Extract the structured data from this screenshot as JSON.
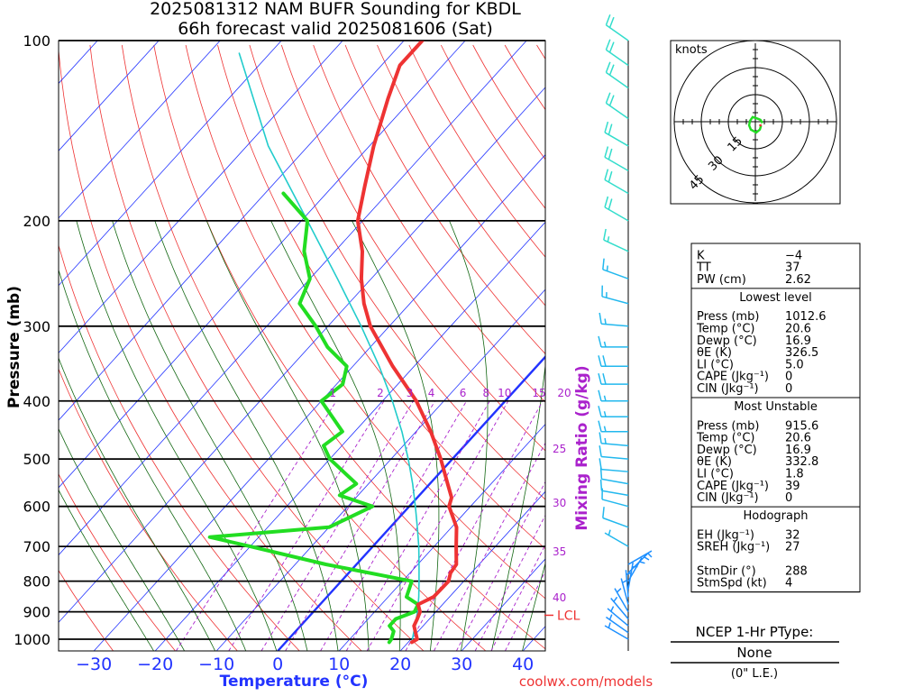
{
  "header": {
    "title_line1": "2025081312 NAM BUFR Sounding for KBDL",
    "title_line2": "66h forecast valid 2025081606 (Sat)"
  },
  "chart_data": {
    "type": "skew-t",
    "ylabel": "Pressure (mb)",
    "xlabel": "Temperature (°C)",
    "mixing_ratio_label": "Mixing Ratio (g/kg)",
    "pressure_ticks": [
      100,
      200,
      300,
      400,
      500,
      600,
      700,
      800,
      900,
      1000
    ],
    "temperature_ticks": [
      -30,
      -20,
      -10,
      0,
      10,
      20,
      30,
      40
    ],
    "mixing_ratio_ticks_top": [
      "1",
      "2",
      "3",
      "4",
      "6",
      "8",
      "10",
      "15",
      "20"
    ],
    "mixing_ratio_ticks_side": [
      "25",
      "30",
      "35",
      "40"
    ],
    "lcl_label": "LCL",
    "lcl_pressure_mb": 912,
    "series": [
      {
        "name": "Temperature",
        "color": "#ee3333",
        "points": [
          [
            1012,
            20.6
          ],
          [
            1000,
            21.0
          ],
          [
            950,
            18.5
          ],
          [
            925,
            18.0
          ],
          [
            900,
            17.4
          ],
          [
            875,
            16.0
          ],
          [
            850,
            17.4
          ],
          [
            800,
            17.5
          ],
          [
            775,
            16.6
          ],
          [
            750,
            16.3
          ],
          [
            700,
            13.6
          ],
          [
            650,
            10.8
          ],
          [
            600,
            6.5
          ],
          [
            580,
            5.6
          ],
          [
            550,
            2.9
          ],
          [
            500,
            -1.9
          ],
          [
            450,
            -7.6
          ],
          [
            400,
            -14.5
          ],
          [
            350,
            -23.5
          ],
          [
            300,
            -33.1
          ],
          [
            275,
            -37.5
          ],
          [
            250,
            -41.6
          ],
          [
            225,
            -45.5
          ],
          [
            200,
            -50.8
          ],
          [
            175,
            -54.8
          ],
          [
            150,
            -59.3
          ],
          [
            125,
            -64.0
          ],
          [
            110,
            -67.0
          ],
          [
            100,
            -67.0
          ]
        ]
      },
      {
        "name": "Dewpoint",
        "color": "#22dd22",
        "points": [
          [
            1012,
            16.9
          ],
          [
            1000,
            16.8
          ],
          [
            970,
            16.0
          ],
          [
            950,
            14.5
          ],
          [
            925,
            14.5
          ],
          [
            900,
            16.5
          ],
          [
            875,
            16.0
          ],
          [
            850,
            13.0
          ],
          [
            800,
            11.5
          ],
          [
            750,
            -5.0
          ],
          [
            700,
            -20.0
          ],
          [
            675,
            -28.0
          ],
          [
            650,
            -10.0
          ],
          [
            600,
            -6.0
          ],
          [
            575,
            -13.0
          ],
          [
            550,
            -12.0
          ],
          [
            500,
            -20.0
          ],
          [
            475,
            -23.0
          ],
          [
            450,
            -22.0
          ],
          [
            400,
            -30.0
          ],
          [
            375,
            -29.0
          ],
          [
            350,
            -31.0
          ],
          [
            325,
            -37.0
          ],
          [
            300,
            -42.0
          ],
          [
            275,
            -48.0
          ],
          [
            250,
            -50.0
          ],
          [
            225,
            -55.0
          ],
          [
            200,
            -59.0
          ],
          [
            180,
            -67.0
          ]
        ]
      },
      {
        "name": "Parcel",
        "color": "#22cccc",
        "points": [
          [
            1012,
            20.6
          ],
          [
            912,
            17.4
          ],
          [
            900,
            17.0
          ],
          [
            850,
            15.0
          ],
          [
            800,
            12.7
          ],
          [
            750,
            10.2
          ],
          [
            700,
            7.5
          ],
          [
            650,
            4.4
          ],
          [
            600,
            1.0
          ],
          [
            550,
            -2.8
          ],
          [
            500,
            -7.2
          ],
          [
            450,
            -12.3
          ],
          [
            400,
            -18.4
          ],
          [
            350,
            -25.7
          ],
          [
            300,
            -34.6
          ],
          [
            250,
            -45.5
          ],
          [
            200,
            -59.0
          ],
          [
            150,
            -76.5
          ],
          [
            105,
            -95.0
          ]
        ]
      }
    ],
    "wind_barbs": [
      {
        "p": 1000,
        "dir": 300,
        "spd": 3
      },
      {
        "p": 975,
        "dir": 305,
        "spd": 4
      },
      {
        "p": 950,
        "dir": 310,
        "spd": 4
      },
      {
        "p": 925,
        "dir": 320,
        "spd": 5
      },
      {
        "p": 900,
        "dir": 330,
        "spd": 5
      },
      {
        "p": 875,
        "dir": 345,
        "spd": 6
      },
      {
        "p": 850,
        "dir": 355,
        "spd": 6
      },
      {
        "p": 825,
        "dir": 10,
        "spd": 5
      },
      {
        "p": 800,
        "dir": 30,
        "spd": 5
      },
      {
        "p": 775,
        "dir": 45,
        "spd": 5
      },
      {
        "p": 750,
        "dir": 60,
        "spd": 4
      },
      {
        "p": 700,
        "dir": 300,
        "spd": 6
      },
      {
        "p": 650,
        "dir": 290,
        "spd": 8
      },
      {
        "p": 600,
        "dir": 285,
        "spd": 10
      },
      {
        "p": 575,
        "dir": 280,
        "spd": 10
      },
      {
        "p": 550,
        "dir": 280,
        "spd": 11
      },
      {
        "p": 525,
        "dir": 275,
        "spd": 12
      },
      {
        "p": 500,
        "dir": 275,
        "spd": 12
      },
      {
        "p": 475,
        "dir": 275,
        "spd": 13
      },
      {
        "p": 450,
        "dir": 270,
        "spd": 14
      },
      {
        "p": 425,
        "dir": 270,
        "spd": 15
      },
      {
        "p": 400,
        "dir": 270,
        "spd": 16
      },
      {
        "p": 375,
        "dir": 270,
        "spd": 18
      },
      {
        "p": 350,
        "dir": 270,
        "spd": 18
      },
      {
        "p": 325,
        "dir": 270,
        "spd": 16
      },
      {
        "p": 300,
        "dir": 275,
        "spd": 15
      },
      {
        "p": 275,
        "dir": 285,
        "spd": 14
      },
      {
        "p": 250,
        "dir": 290,
        "spd": 15
      },
      {
        "p": 225,
        "dir": 295,
        "spd": 17
      },
      {
        "p": 200,
        "dir": 300,
        "spd": 20
      },
      {
        "p": 180,
        "dir": 300,
        "spd": 22
      },
      {
        "p": 165,
        "dir": 300,
        "spd": 22
      },
      {
        "p": 150,
        "dir": 300,
        "spd": 20
      },
      {
        "p": 135,
        "dir": 305,
        "spd": 20
      },
      {
        "p": 120,
        "dir": 305,
        "spd": 18
      },
      {
        "p": 110,
        "dir": 305,
        "spd": 20
      },
      {
        "p": 100,
        "dir": 305,
        "spd": 20
      }
    ],
    "hodograph": {
      "units": "knots",
      "rings": [
        "15",
        "30",
        "45"
      ],
      "points": [
        [
          300,
          3
        ],
        [
          310,
          4
        ],
        [
          330,
          5
        ],
        [
          355,
          6
        ],
        [
          30,
          5
        ],
        [
          60,
          4
        ],
        [
          100,
          3
        ],
        [
          150,
          3
        ],
        [
          200,
          2
        ],
        [
          250,
          3
        ],
        [
          280,
          4
        ]
      ]
    }
  },
  "indices": {
    "top": [
      {
        "label": "K",
        "value": "−4"
      },
      {
        "label": "TT",
        "value": "37"
      },
      {
        "label": "PW (cm)",
        "value": "2.62"
      }
    ],
    "lowest_title": "Lowest level",
    "lowest": [
      {
        "label": "Press (mb)",
        "value": "1012.6"
      },
      {
        "label": "Temp (°C)",
        "value": "20.6"
      },
      {
        "label": "Dewp (°C)",
        "value": "16.9"
      },
      {
        "label": "θE (K)",
        "value": "326.5"
      },
      {
        "label": "LI (°C)",
        "value": "5.0"
      },
      {
        "label": "CAPE (Jkg⁻¹)",
        "value": "0"
      },
      {
        "label": "CIN (Jkg⁻¹)",
        "value": "0"
      }
    ],
    "unstable_title": "Most Unstable",
    "unstable": [
      {
        "label": "Press (mb)",
        "value": "915.6"
      },
      {
        "label": "Temp (°C)",
        "value": "20.6"
      },
      {
        "label": "Dewp (°C)",
        "value": "16.9"
      },
      {
        "label": "θE (K)",
        "value": "332.8"
      },
      {
        "label": "LI (°C)",
        "value": "1.8"
      },
      {
        "label": "CAPE (Jkg⁻¹)",
        "value": "39"
      },
      {
        "label": "CIN (Jkg⁻¹)",
        "value": "0"
      }
    ],
    "hodo_title": "Hodograph",
    "hodo": [
      {
        "label": "EH (Jkg⁻¹)",
        "value": "32"
      },
      {
        "label": "SREH (Jkg⁻¹)",
        "value": "27"
      },
      {
        "label": "",
        "value": ""
      },
      {
        "label": "StmDir (°)",
        "value": "288"
      },
      {
        "label": "StmSpd (kt)",
        "value": "4"
      }
    ]
  },
  "ptype": {
    "title": "NCEP 1-Hr PType:",
    "value": "None",
    "amount": "(0\" L.E.)"
  },
  "footer": {
    "credit": "coolwx.com/models"
  }
}
